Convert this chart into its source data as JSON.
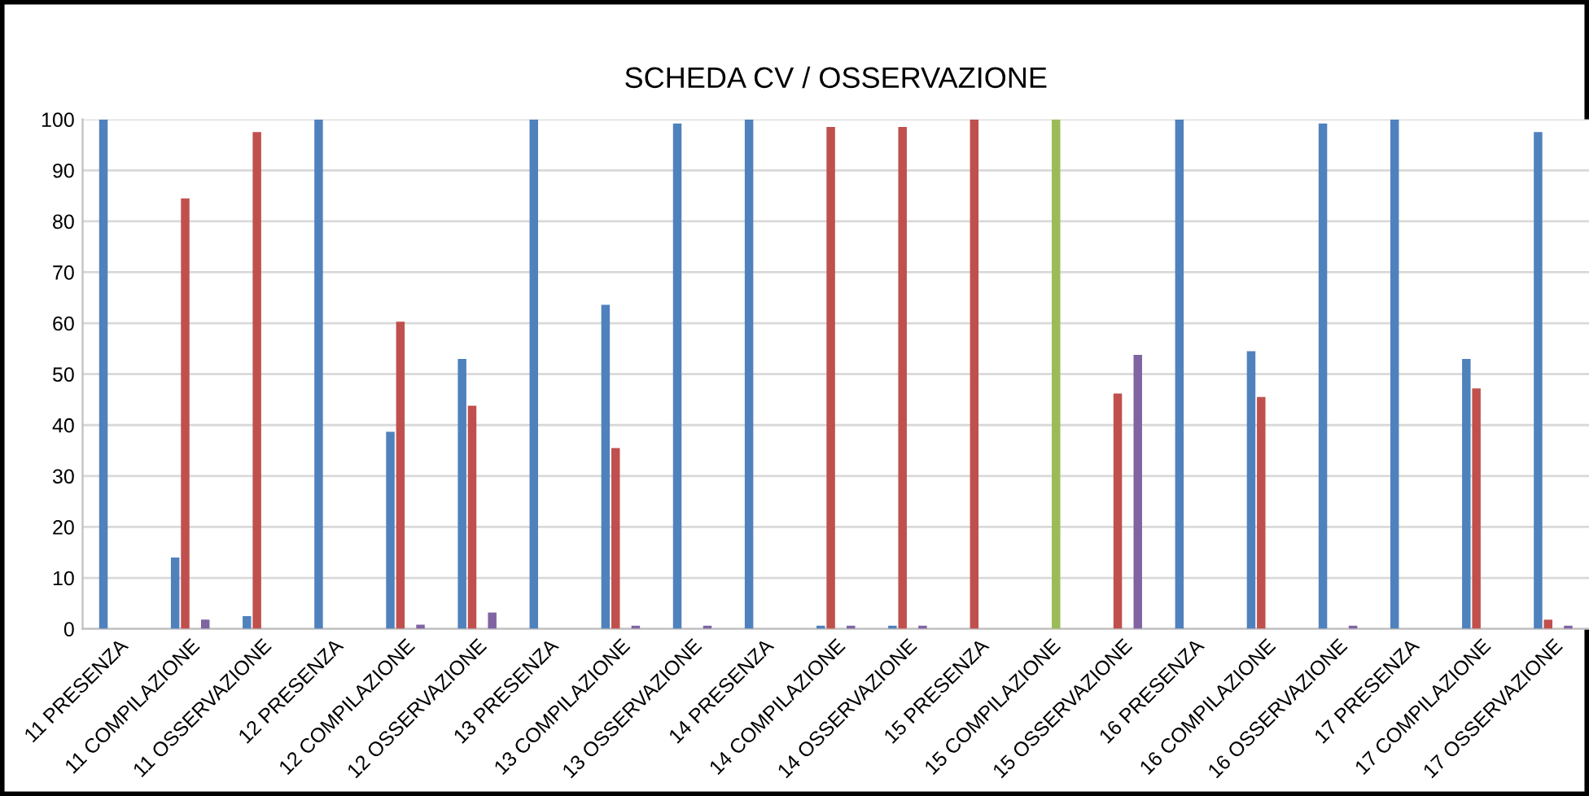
{
  "chart_data": {
    "type": "bar",
    "title": "SCHEDA CV / OSSERVAZIONE",
    "categories": [
      "11 PRESENZA",
      "11 COMPILAZIONE",
      "11 OSSERVAZIONE",
      "12 PRESENZA",
      "12 COMPILAZIONE",
      "12 OSSERVAZIONE",
      "13 PRESENZA",
      "13 COMPILAZIONE",
      "13 OSSERVAZIONE",
      "14 PRESENZA",
      "14 COMPILAZIONE",
      "14 OSSERVAZIONE",
      "15 PRESENZA",
      "15 COMPILAZIONE",
      "15 OSSERVAZIONE",
      "16 PRESENZA",
      "16 COMPILAZIONE",
      "16 OSSERVAZIONE",
      "17 PRESENZA",
      "17 COMPILAZIONE",
      "17 OSSERVAZIONE"
    ],
    "series": [
      {
        "color": "#4f81bd",
        "values": [
          100,
          14,
          2.5,
          100,
          38.7,
          53,
          100,
          63.6,
          99.2,
          100,
          0.6,
          0.6,
          0,
          0,
          0,
          100,
          54.5,
          99.2,
          100,
          53,
          97.5
        ]
      },
      {
        "color": "#c0504d",
        "values": [
          0,
          84.5,
          97.5,
          0,
          60.3,
          43.8,
          0,
          35.5,
          0,
          0,
          98.5,
          98.5,
          100,
          0,
          46.2,
          0,
          45.5,
          0,
          0,
          47.2,
          1.8
        ]
      },
      {
        "color": "#9bbb59",
        "values": [
          0,
          0,
          0,
          0,
          0,
          0,
          0,
          0,
          0,
          0,
          0,
          0,
          0,
          100,
          0,
          0,
          0,
          0,
          0,
          0,
          0
        ]
      },
      {
        "color": "#8064a2",
        "values": [
          0,
          1.8,
          0,
          0,
          0.8,
          3.2,
          0,
          0.6,
          0.6,
          0,
          0.6,
          0.6,
          0,
          0,
          53.8,
          0,
          0,
          0.6,
          0,
          0,
          0.6
        ]
      }
    ],
    "ylim": [
      0,
      100
    ],
    "yticks": [
      0,
      10,
      20,
      30,
      40,
      50,
      60,
      70,
      80,
      90,
      100
    ],
    "grid": "y",
    "legend": false
  }
}
